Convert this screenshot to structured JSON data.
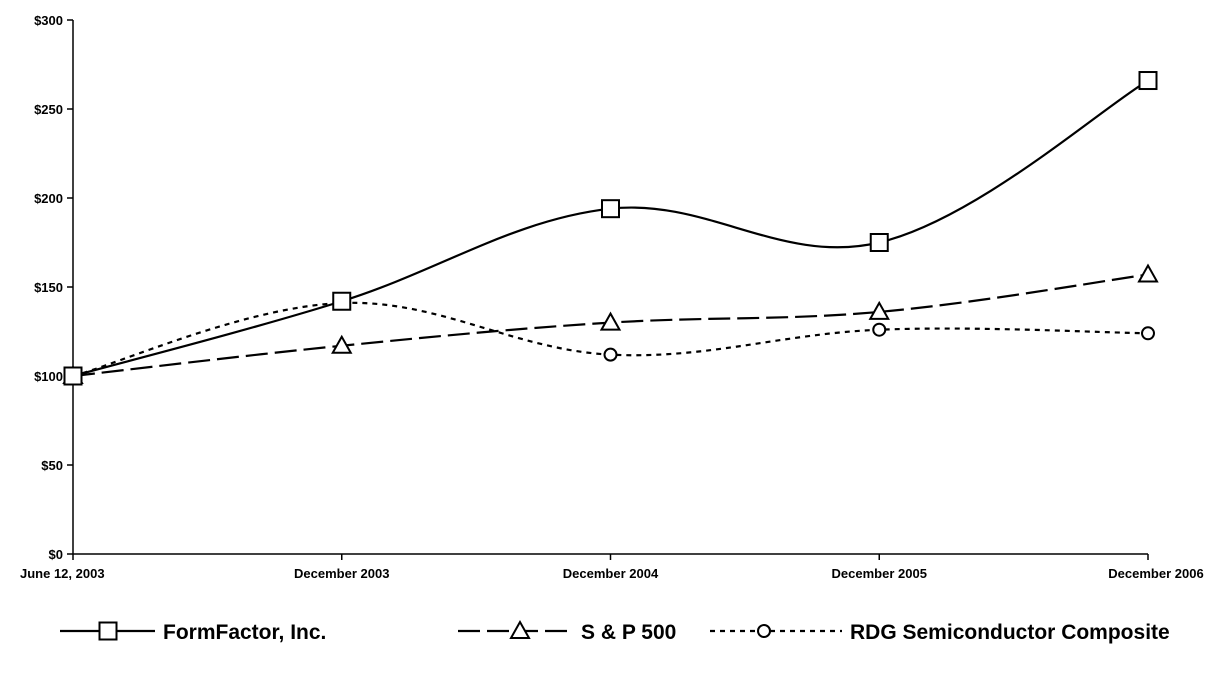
{
  "chart_data": {
    "type": "line",
    "title": "",
    "xlabel": "",
    "ylabel": "",
    "categories": [
      "June 12, 2003",
      "December 2003",
      "December 2004",
      "December 2005",
      "December 2006"
    ],
    "y_ticks": [
      "$0",
      "$50",
      "$100",
      "$150",
      "$200",
      "$250",
      "$300"
    ],
    "ylim": [
      0,
      300
    ],
    "grid": false,
    "legend_position": "bottom",
    "series": [
      {
        "name": "FormFactor, Inc.",
        "values": [
          100,
          142,
          194,
          175,
          266
        ],
        "marker": "square",
        "line_style": "solid",
        "color": "#000000"
      },
      {
        "name": "S & P 500",
        "values": [
          100,
          117,
          130,
          136,
          157
        ],
        "marker": "triangle",
        "line_style": "long-dash",
        "color": "#000000"
      },
      {
        "name": "RDG Semiconductor Composite",
        "values": [
          100,
          141,
          112,
          126,
          124
        ],
        "marker": "circle",
        "line_style": "dotted",
        "color": "#000000"
      }
    ]
  }
}
